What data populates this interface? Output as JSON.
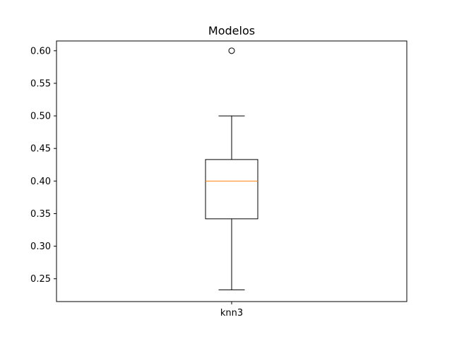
{
  "chart_data": {
    "type": "box",
    "title": "Modelos",
    "xlabel": "",
    "ylabel": "",
    "categories": [
      "knn3"
    ],
    "ylim": [
      0.215,
      0.615
    ],
    "yticks": [
      0.25,
      0.3,
      0.35,
      0.4,
      0.45,
      0.5,
      0.55,
      0.6
    ],
    "ytick_labels": [
      "0.25",
      "0.30",
      "0.35",
      "0.40",
      "0.45",
      "0.50",
      "0.55",
      "0.60"
    ],
    "grid": false,
    "boxes": [
      {
        "category": "knn3",
        "whisker_low": 0.233,
        "q1": 0.342,
        "median": 0.4,
        "q3": 0.433,
        "whisker_high": 0.5,
        "outliers": [
          0.6
        ]
      }
    ],
    "colors": {
      "box": "#000000",
      "median": "#ff7f0e",
      "whisker": "#000000"
    }
  }
}
